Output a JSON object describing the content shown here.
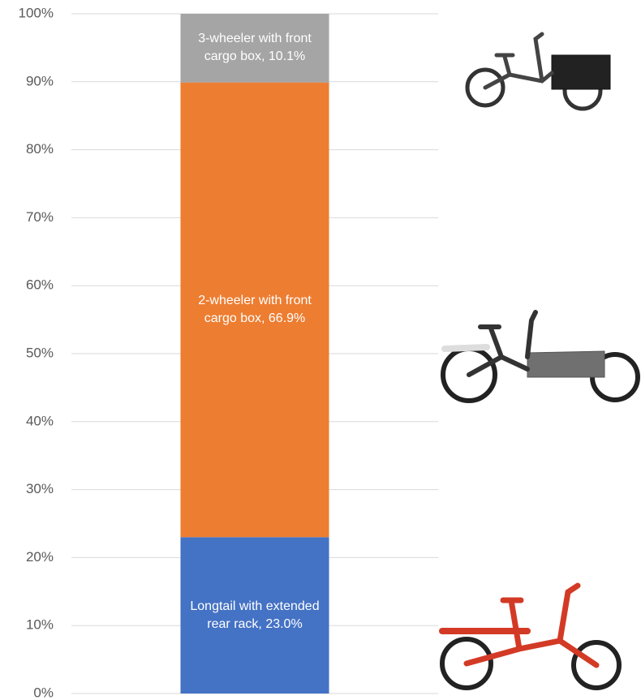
{
  "chart_data": {
    "type": "stacked_bar",
    "categories": [
      null
    ],
    "series": [
      {
        "color": "#4472c4",
        "values": [
          23.0
        ],
        "value_labels": [
          "Longtail with extended rear rack, 23.0%"
        ]
      },
      {
        "color": "#ed7d31",
        "values": [
          66.9
        ],
        "value_labels": [
          "2-wheeler with front cargo box, 66.9%"
        ]
      },
      {
        "color": "#a5a5a5",
        "values": [
          10.1
        ],
        "value_labels": [
          "3-wheeler with front cargo box, 10.1%"
        ]
      }
    ],
    "ylim": [
      0,
      100
    ],
    "yticks": [
      {
        "value": 0,
        "label": "0%"
      },
      {
        "value": 10,
        "label": "10%"
      },
      {
        "value": 20,
        "label": "20%"
      },
      {
        "value": 30,
        "label": "30%"
      },
      {
        "value": 40,
        "label": "40%"
      },
      {
        "value": 50,
        "label": "50%"
      },
      {
        "value": 60,
        "label": "60%"
      },
      {
        "value": 70,
        "label": "70%"
      },
      {
        "value": 80,
        "label": "80%"
      },
      {
        "value": 90,
        "label": "90%"
      },
      {
        "value": 100,
        "label": "100%"
      }
    ],
    "grid": true
  }
}
